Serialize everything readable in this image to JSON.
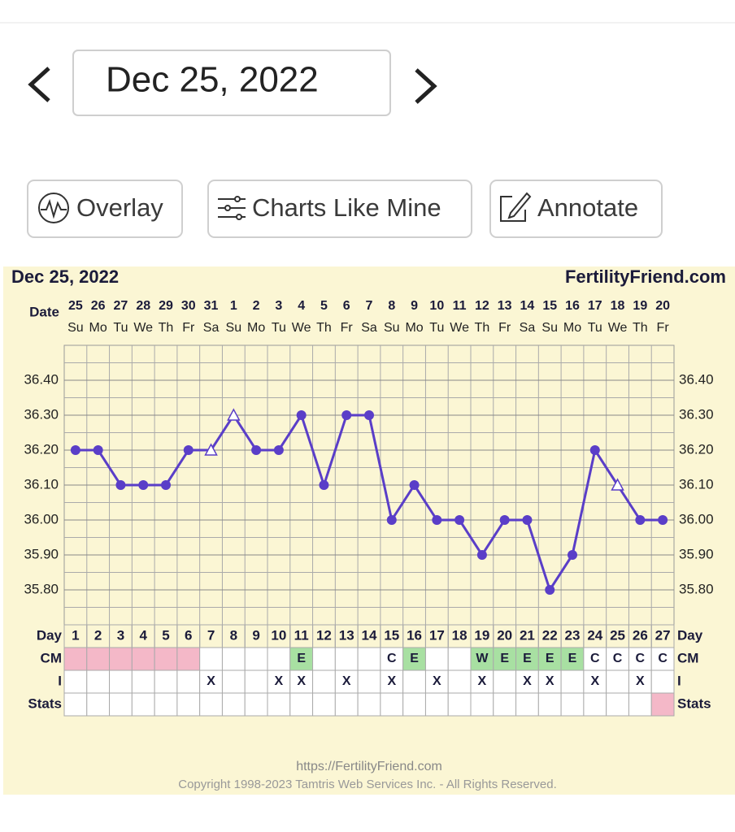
{
  "date_picker": "Dec 25, 2022",
  "buttons": [
    "Overlay",
    "Charts Like Mine",
    "Annotate"
  ],
  "chart_data": {
    "type": "line",
    "title": "Dec 25, 2022",
    "source": "FertilityFriend.com",
    "date_label": "Date",
    "categories": [
      "25",
      "26",
      "27",
      "28",
      "29",
      "30",
      "31",
      "1",
      "2",
      "3",
      "4",
      "5",
      "6",
      "7",
      "8",
      "9",
      "10",
      "11",
      "12",
      "13",
      "14",
      "15",
      "16",
      "17",
      "18",
      "19",
      "20"
    ],
    "weekdays": [
      "Su",
      "Mo",
      "Tu",
      "We",
      "Th",
      "Fr",
      "Sa",
      "Su",
      "Mo",
      "Tu",
      "We",
      "Th",
      "Fr",
      "Sa",
      "Su",
      "Mo",
      "Tu",
      "We",
      "Th",
      "Fr",
      "Sa",
      "Su",
      "Mo",
      "Tu",
      "We",
      "Th",
      "Fr"
    ],
    "series": [
      {
        "color": "#5a3ec8",
        "values": [
          36.2,
          36.2,
          36.1,
          36.1,
          36.1,
          36.2,
          36.2,
          36.3,
          36.2,
          36.2,
          36.3,
          36.1,
          36.3,
          36.3,
          36.0,
          36.1,
          36.0,
          36.0,
          35.9,
          36.0,
          36.0,
          35.8,
          35.9,
          36.2,
          36.1,
          36.0,
          36.0
        ],
        "markers": [
          "circle",
          "circle",
          "circle",
          "circle",
          "circle",
          "circle",
          "triangle",
          "triangle",
          "circle",
          "circle",
          "circle",
          "circle",
          "circle",
          "circle",
          "circle",
          "circle",
          "circle",
          "circle",
          "circle",
          "circle",
          "circle",
          "circle",
          "circle",
          "circle",
          "triangle",
          "circle",
          "circle"
        ]
      }
    ],
    "ylim": [
      35.7,
      36.5
    ],
    "yticks": [
      {
        "value": 35.8,
        "label": "35.80"
      },
      {
        "value": 35.9,
        "label": "35.90"
      },
      {
        "value": 36.0,
        "label": "36.00"
      },
      {
        "value": 36.1,
        "label": "36.10"
      },
      {
        "value": 36.2,
        "label": "36.20"
      },
      {
        "value": 36.3,
        "label": "36.30"
      },
      {
        "value": 36.4,
        "label": "36.40"
      }
    ],
    "grid": true,
    "table": {
      "day_label": "Day",
      "days": [
        1,
        2,
        3,
        4,
        5,
        6,
        7,
        8,
        9,
        10,
        11,
        12,
        13,
        14,
        15,
        16,
        17,
        18,
        19,
        20,
        21,
        22,
        23,
        24,
        25,
        26,
        27
      ],
      "cm_label": "CM",
      "cm": [
        null,
        null,
        null,
        null,
        null,
        null,
        null,
        null,
        null,
        null,
        "E",
        null,
        null,
        null,
        "C",
        "E",
        null,
        null,
        "W",
        "E",
        "E",
        "E",
        "E",
        "C",
        "C",
        "C",
        "C"
      ],
      "cm_colors": [
        "#f4b8c8",
        "#f4b8c8",
        "#f4b8c8",
        "#f4b8c8",
        "#f4b8c8",
        "#f4b8c8",
        null,
        null,
        null,
        null,
        "#a8e0a2",
        null,
        null,
        null,
        null,
        "#a8e0a2",
        null,
        null,
        "#a8e0a2",
        "#a8e0a2",
        "#a8e0a2",
        "#a8e0a2",
        "#a8e0a2",
        null,
        null,
        null,
        null
      ],
      "i_label": "I",
      "i": [
        null,
        null,
        null,
        null,
        null,
        null,
        "X",
        null,
        null,
        "X",
        "X",
        null,
        "X",
        null,
        "X",
        null,
        "X",
        null,
        "X",
        null,
        "X",
        "X",
        null,
        "X",
        null,
        "X",
        null
      ],
      "stats_label": "Stats",
      "stats_colors": [
        null,
        null,
        null,
        null,
        null,
        null,
        null,
        null,
        null,
        null,
        null,
        null,
        null,
        null,
        null,
        null,
        null,
        null,
        null,
        null,
        null,
        null,
        null,
        null,
        null,
        null,
        "#f4b8c8"
      ]
    }
  },
  "footer": {
    "url": "https://FertilityFriend.com",
    "copyright": "Copyright 1998-2023 Tamtris Web Services Inc. - All Rights Reserved."
  }
}
